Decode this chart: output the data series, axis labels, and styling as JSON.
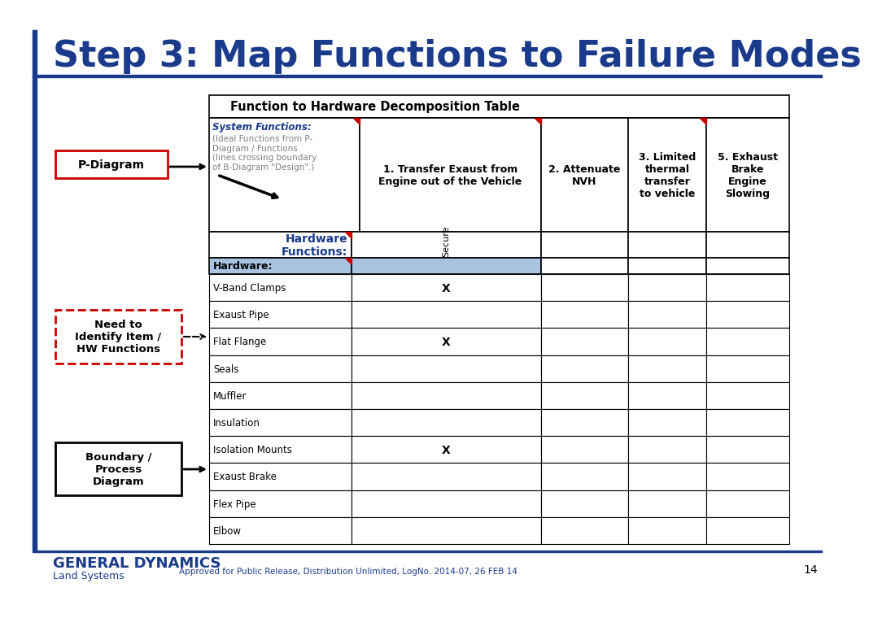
{
  "title": "Step 3: Map Functions to Failure Modes",
  "title_color": "#1a3a8c",
  "title_fontsize": 32,
  "bg_color": "#ffffff",
  "blue_line_color": "#1a3a8c",
  "table_title": "Function to Hardware Decomposition Table",
  "sys_func_label1": "System Functions:",
  "sys_func_label2": "(Ideal Functions from P-\nDiagram / Functions\n(lines crossing boundary\nof B-Diagram \"Design\".)",
  "col1_text": "1. Transfer Exaust from\nEngine out of the Vehicle",
  "col2_text": "2. Attenuate\nNVH",
  "col3_text": "3. Limited\nthermal\ntransfer\nto vehicle",
  "col4_text": "5. Exhaust\nBrake\nEngine\nSlowing",
  "hw_label": "Hardware\nFunctions:",
  "secure_label": "Secure",
  "hardware_header": "Hardware:",
  "hardware_items": [
    "V-Band Clamps",
    "Exaust Pipe",
    "Flat Flange",
    "Seals",
    "Muffler",
    "Insulation",
    "Isolation Mounts",
    "Exaust Brake",
    "Flex Pipe",
    "Elbow"
  ],
  "x_marks": [
    "V-Band Clamps",
    "Flat Flange",
    "Isolation Mounts"
  ],
  "p_diagram_label": "P-Diagram",
  "need_label": "Need to\nIdentify Item /\nHW Functions",
  "boundary_label": "Boundary /\nProcess\nDiagram",
  "footer_left": "GENERAL DYNAMICS",
  "footer_sub": "Land Systems",
  "footer_right": "Approved for Public Release, Distribution Unlimited, LogNo. 2014-07, 26 FEB 14",
  "footer_page": "14",
  "header_bg": "#a8c4e0",
  "red_color": "#cc0000"
}
